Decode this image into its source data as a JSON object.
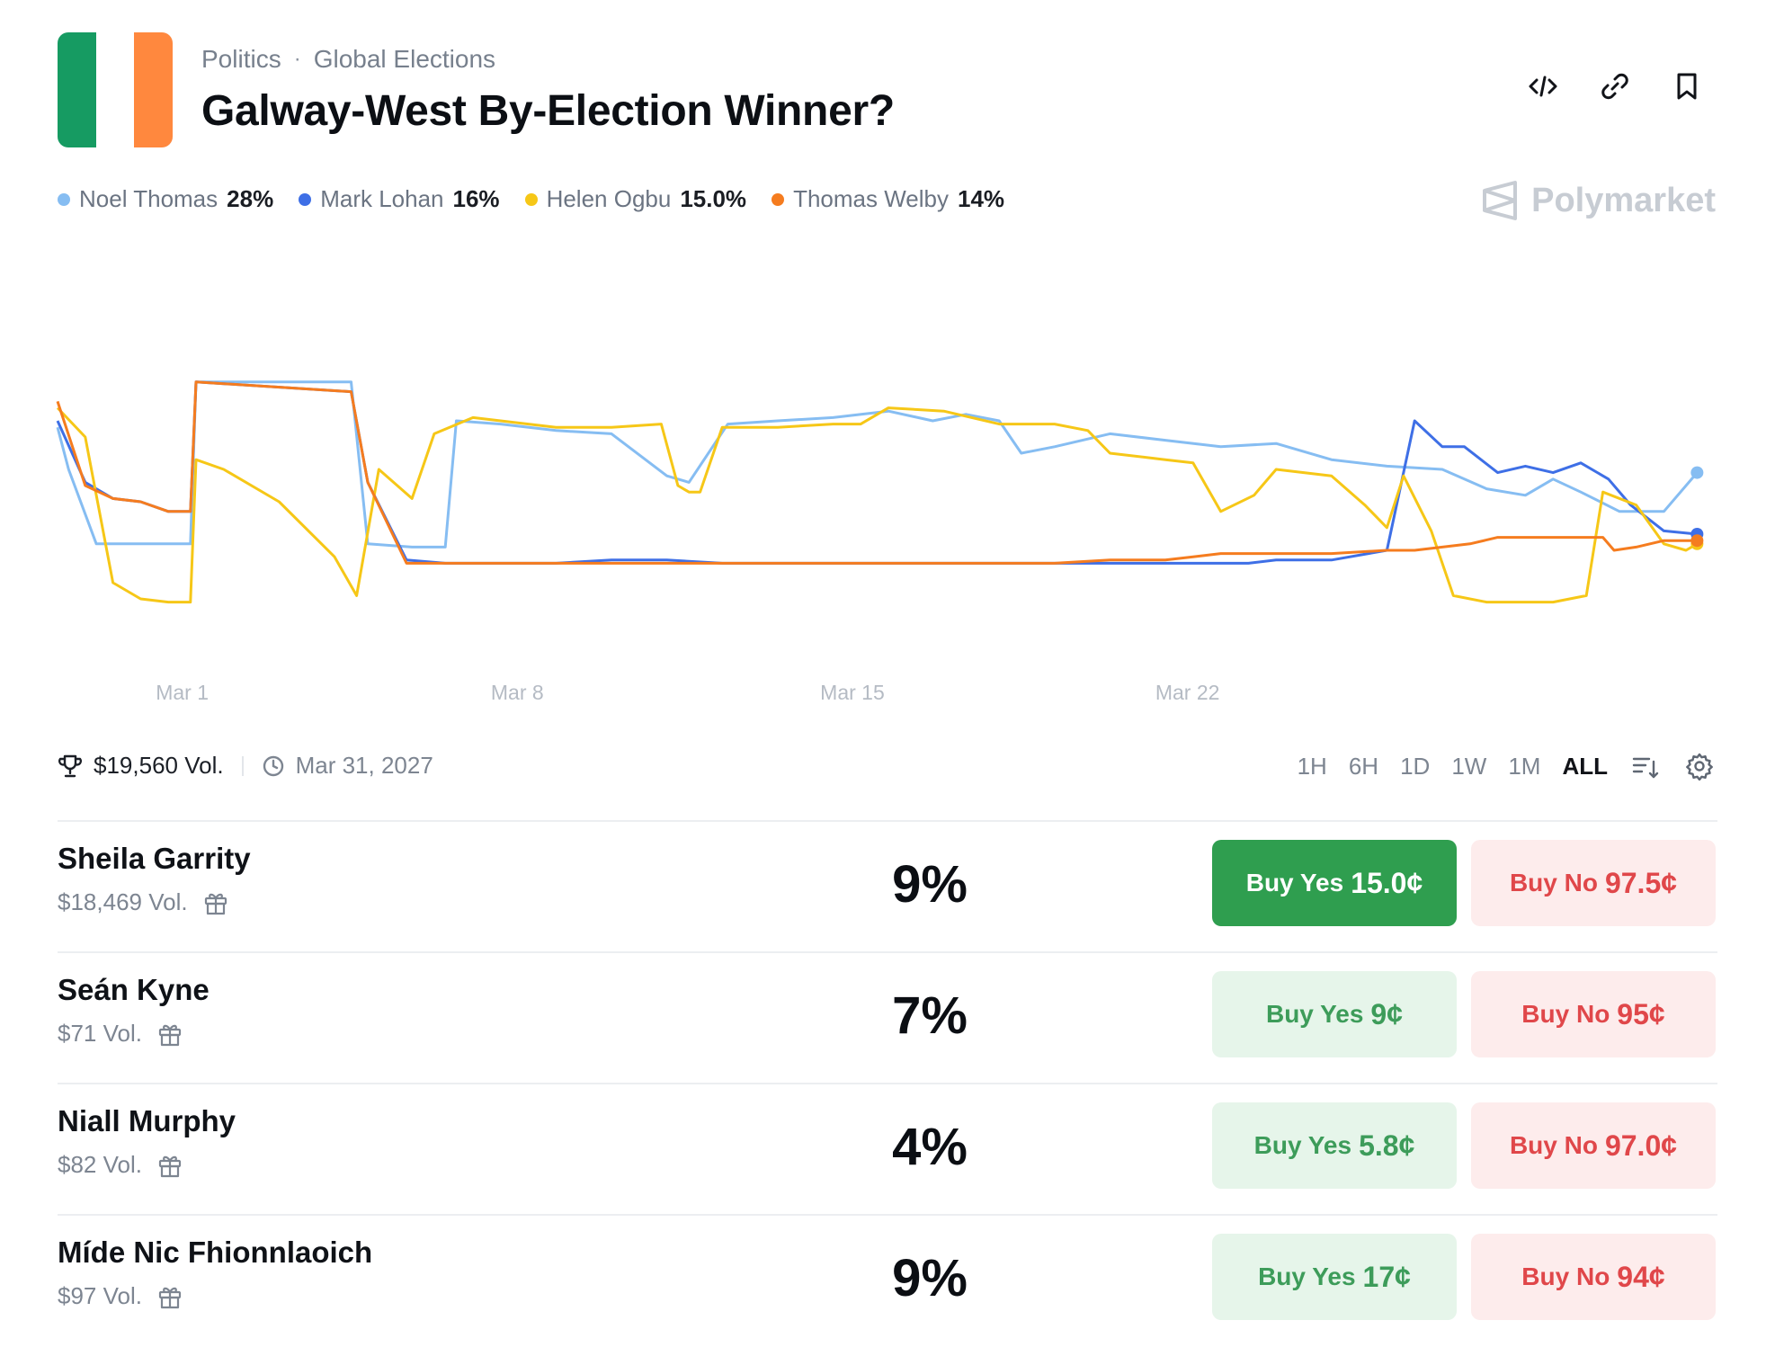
{
  "header": {
    "breadcrumb": [
      "Politics",
      "Global Elections"
    ],
    "title": "Galway-West By-Election Winner?",
    "flag_colors": [
      "#169b62",
      "#ffffff",
      "#ff883e"
    ]
  },
  "legend": [
    {
      "name": "Noel Thomas",
      "pct": "28%",
      "color": "#86bdf2"
    },
    {
      "name": "Mark Lohan",
      "pct": "16%",
      "color": "#3e6fe6"
    },
    {
      "name": "Helen Ogbu",
      "pct": "15.0%",
      "color": "#f6c717"
    },
    {
      "name": "Thomas Welby",
      "pct": "14%",
      "color": "#f57c1f"
    }
  ],
  "brand": "Polymarket",
  "chart_data": {
    "type": "line",
    "x_ticks": [
      "Mar 1",
      "Mar 8",
      "Mar 15",
      "Mar 22"
    ],
    "grid": false,
    "series": [
      {
        "name": "Noel Thomas",
        "color": "#86bdf2",
        "points": [
          [
            0,
            0.68
          ],
          [
            0.2,
            0.55
          ],
          [
            0.7,
            0.32
          ],
          [
            1.0,
            0.32
          ],
          [
            2.4,
            0.32
          ],
          [
            2.5,
            0.82
          ],
          [
            5.3,
            0.82
          ],
          [
            5.6,
            0.32
          ],
          [
            6.4,
            0.31
          ],
          [
            7.0,
            0.31
          ],
          [
            7.2,
            0.7
          ],
          [
            8.0,
            0.69
          ],
          [
            9.0,
            0.67
          ],
          [
            10.0,
            0.66
          ],
          [
            11.0,
            0.53
          ],
          [
            11.4,
            0.51
          ],
          [
            12.1,
            0.69
          ],
          [
            13.0,
            0.7
          ],
          [
            14.0,
            0.71
          ],
          [
            15.0,
            0.73
          ],
          [
            15.8,
            0.7
          ],
          [
            16.4,
            0.72
          ],
          [
            17.0,
            0.7
          ],
          [
            17.4,
            0.6
          ],
          [
            18.0,
            0.62
          ],
          [
            19.0,
            0.66
          ],
          [
            20.0,
            0.64
          ],
          [
            21.0,
            0.62
          ],
          [
            22.0,
            0.63
          ],
          [
            23.0,
            0.58
          ],
          [
            24.0,
            0.56
          ],
          [
            25.0,
            0.55
          ],
          [
            25.8,
            0.49
          ],
          [
            26.5,
            0.47
          ],
          [
            27.0,
            0.52
          ],
          [
            27.5,
            0.48
          ],
          [
            28.2,
            0.42
          ],
          [
            29.0,
            0.42
          ],
          [
            29.6,
            0.54
          ]
        ]
      },
      {
        "name": "Mark Lohan",
        "color": "#3e6fe6",
        "points": [
          [
            0,
            0.7
          ],
          [
            0.5,
            0.51
          ],
          [
            1.0,
            0.46
          ],
          [
            1.5,
            0.45
          ],
          [
            2.0,
            0.42
          ],
          [
            2.4,
            0.42
          ],
          [
            2.5,
            0.82
          ],
          [
            5.3,
            0.79
          ],
          [
            5.6,
            0.51
          ],
          [
            6.3,
            0.27
          ],
          [
            7.0,
            0.26
          ],
          [
            8.0,
            0.26
          ],
          [
            9.0,
            0.26
          ],
          [
            10.0,
            0.27
          ],
          [
            11.0,
            0.27
          ],
          [
            12.0,
            0.26
          ],
          [
            13.0,
            0.26
          ],
          [
            15.0,
            0.26
          ],
          [
            16.0,
            0.26
          ],
          [
            18.0,
            0.26
          ],
          [
            20.0,
            0.26
          ],
          [
            21.0,
            0.26
          ],
          [
            21.5,
            0.26
          ],
          [
            22.0,
            0.27
          ],
          [
            23.0,
            0.27
          ],
          [
            24.0,
            0.3
          ],
          [
            24.5,
            0.7
          ],
          [
            25.0,
            0.62
          ],
          [
            25.4,
            0.62
          ],
          [
            26.0,
            0.54
          ],
          [
            26.5,
            0.56
          ],
          [
            27.0,
            0.54
          ],
          [
            27.5,
            0.57
          ],
          [
            28.0,
            0.52
          ],
          [
            28.4,
            0.44
          ],
          [
            29.0,
            0.36
          ],
          [
            29.6,
            0.35
          ]
        ]
      },
      {
        "name": "Helen Ogbu",
        "color": "#f6c717",
        "points": [
          [
            0,
            0.74
          ],
          [
            0.5,
            0.65
          ],
          [
            1.0,
            0.2
          ],
          [
            1.5,
            0.15
          ],
          [
            2.0,
            0.14
          ],
          [
            2.4,
            0.14
          ],
          [
            2.5,
            0.58
          ],
          [
            3.0,
            0.55
          ],
          [
            4.0,
            0.45
          ],
          [
            5.0,
            0.28
          ],
          [
            5.4,
            0.16
          ],
          [
            5.8,
            0.55
          ],
          [
            6.4,
            0.46
          ],
          [
            6.8,
            0.66
          ],
          [
            7.5,
            0.71
          ],
          [
            8.0,
            0.7
          ],
          [
            9.0,
            0.68
          ],
          [
            10.0,
            0.68
          ],
          [
            10.9,
            0.69
          ],
          [
            11.2,
            0.5
          ],
          [
            11.4,
            0.48
          ],
          [
            11.6,
            0.48
          ],
          [
            12.0,
            0.68
          ],
          [
            13.0,
            0.68
          ],
          [
            14.0,
            0.69
          ],
          [
            14.5,
            0.69
          ],
          [
            15.0,
            0.74
          ],
          [
            16.0,
            0.73
          ],
          [
            17.0,
            0.69
          ],
          [
            18.0,
            0.69
          ],
          [
            18.6,
            0.67
          ],
          [
            19.0,
            0.6
          ],
          [
            20.0,
            0.58
          ],
          [
            20.5,
            0.57
          ],
          [
            21.0,
            0.42
          ],
          [
            21.6,
            0.47
          ],
          [
            22.0,
            0.55
          ],
          [
            23.0,
            0.53
          ],
          [
            23.6,
            0.44
          ],
          [
            24.0,
            0.37
          ],
          [
            24.3,
            0.53
          ],
          [
            24.8,
            0.36
          ],
          [
            25.2,
            0.16
          ],
          [
            25.8,
            0.14
          ],
          [
            27.0,
            0.14
          ],
          [
            27.6,
            0.16
          ],
          [
            27.9,
            0.48
          ],
          [
            28.5,
            0.44
          ],
          [
            29.0,
            0.32
          ],
          [
            29.4,
            0.3
          ],
          [
            29.6,
            0.32
          ]
        ]
      },
      {
        "name": "Thomas Welby",
        "color": "#f57c1f",
        "points": [
          [
            0,
            0.76
          ],
          [
            0.5,
            0.5
          ],
          [
            1.0,
            0.46
          ],
          [
            1.5,
            0.45
          ],
          [
            2.0,
            0.42
          ],
          [
            2.4,
            0.42
          ],
          [
            2.5,
            0.82
          ],
          [
            5.3,
            0.79
          ],
          [
            5.6,
            0.51
          ],
          [
            6.3,
            0.26
          ],
          [
            7.0,
            0.26
          ],
          [
            8.0,
            0.26
          ],
          [
            9.0,
            0.26
          ],
          [
            10.0,
            0.26
          ],
          [
            11.0,
            0.26
          ],
          [
            12.0,
            0.26
          ],
          [
            14.0,
            0.26
          ],
          [
            16.0,
            0.26
          ],
          [
            18.0,
            0.26
          ],
          [
            19.0,
            0.27
          ],
          [
            20.0,
            0.27
          ],
          [
            20.5,
            0.28
          ],
          [
            21.0,
            0.29
          ],
          [
            22.0,
            0.29
          ],
          [
            23.0,
            0.29
          ],
          [
            24.0,
            0.3
          ],
          [
            24.5,
            0.3
          ],
          [
            25.0,
            0.31
          ],
          [
            25.5,
            0.32
          ],
          [
            26.0,
            0.34
          ],
          [
            27.0,
            0.34
          ],
          [
            27.9,
            0.34
          ],
          [
            28.1,
            0.3
          ],
          [
            28.5,
            0.31
          ],
          [
            29.0,
            0.33
          ],
          [
            29.6,
            0.33
          ]
        ]
      }
    ]
  },
  "toolbar": {
    "volume": "$19,560 Vol.",
    "end_date": "Mar 31, 2027",
    "ranges": [
      "1H",
      "6H",
      "1D",
      "1W",
      "1M",
      "ALL"
    ],
    "active_range": "ALL"
  },
  "rows": [
    {
      "name": "Sheila Garrity",
      "vol": "$18,469 Vol.",
      "pct": "9%",
      "yes_label": "Buy Yes",
      "yes_price": "15.0¢",
      "no_label": "Buy No",
      "no_price": "97.5¢",
      "highlight": true
    },
    {
      "name": "Seán Kyne",
      "vol": "$71 Vol.",
      "pct": "7%",
      "yes_label": "Buy Yes",
      "yes_price": "9¢",
      "no_label": "Buy No",
      "no_price": "95¢",
      "highlight": false
    },
    {
      "name": "Niall Murphy",
      "vol": "$82 Vol.",
      "pct": "4%",
      "yes_label": "Buy Yes",
      "yes_price": "5.8¢",
      "no_label": "Buy No",
      "no_price": "97.0¢",
      "highlight": false
    },
    {
      "name": "Míde Nic Fhionnlaoich",
      "vol": "$97 Vol.",
      "pct": "9%",
      "yes_label": "Buy Yes",
      "yes_price": "17¢",
      "no_label": "Buy No",
      "no_price": "94¢",
      "highlight": false
    }
  ]
}
